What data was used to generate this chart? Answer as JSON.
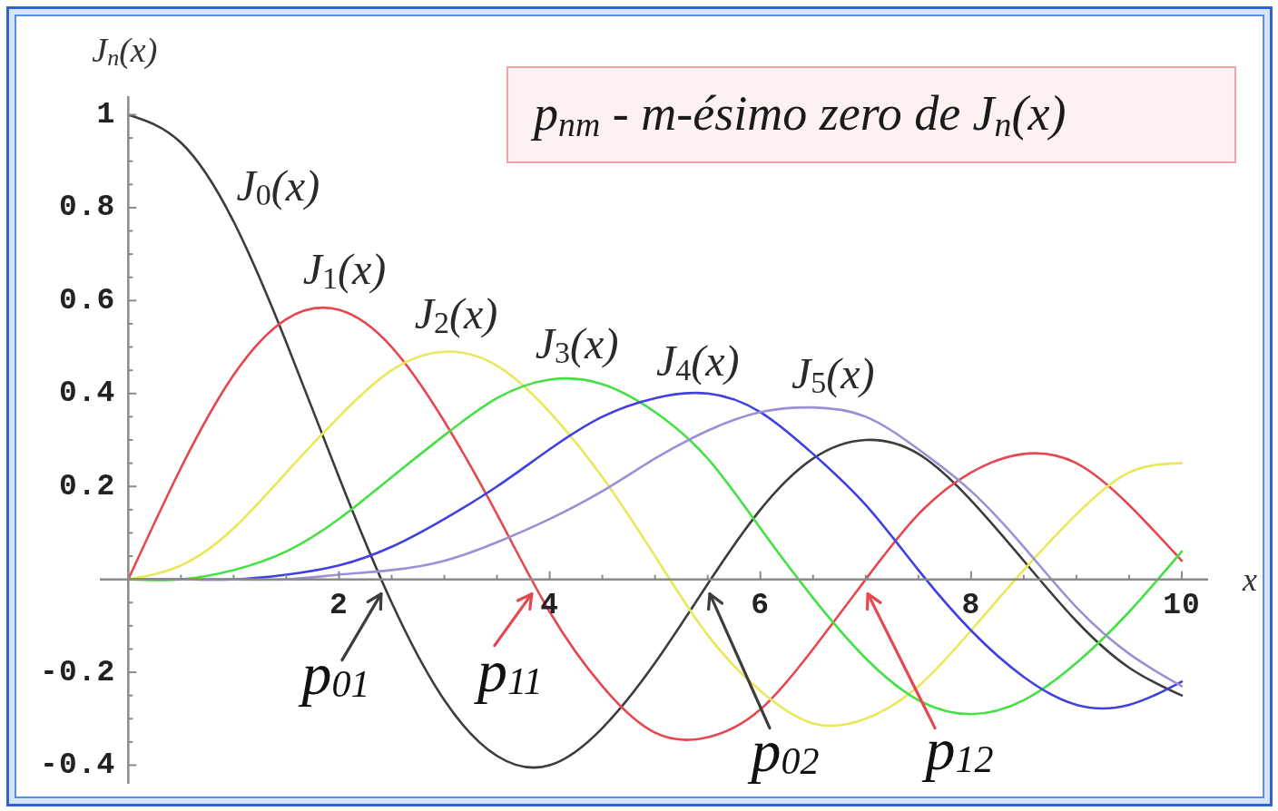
{
  "chart_data": {
    "type": "line",
    "xlabel": "x",
    "ylabel": "J$_{n}$(x)",
    "x": [
      0,
      0.5,
      1,
      1.5,
      2,
      2.5,
      3,
      3.5,
      4,
      4.5,
      5,
      5.5,
      6,
      6.5,
      7,
      7.5,
      8,
      8.5,
      9,
      9.5,
      10
    ],
    "series": [
      {
        "name": "J$_{0}$(x)",
        "color": "#3c3c3c",
        "values": [
          1,
          0.94,
          0.77,
          0.51,
          0.22,
          -0.05,
          -0.26,
          -0.38,
          -0.4,
          -0.32,
          -0.18,
          -0.01,
          0.15,
          0.26,
          0.3,
          0.27,
          0.17,
          0.04,
          -0.09,
          -0.19,
          -0.25
        ]
      },
      {
        "name": "J$_{1}$(x)",
        "color": "#e6474f",
        "values": [
          0,
          0.24,
          0.44,
          0.56,
          0.58,
          0.5,
          0.34,
          0.14,
          -0.07,
          -0.23,
          -0.33,
          -0.34,
          -0.28,
          -0.15,
          0.0,
          0.14,
          0.23,
          0.27,
          0.25,
          0.16,
          0.04
        ]
      },
      {
        "name": "J$_{2}$(x)",
        "color": "#e8e85a",
        "values": [
          0,
          0.03,
          0.11,
          0.23,
          0.35,
          0.45,
          0.49,
          0.46,
          0.36,
          0.22,
          0.05,
          -0.12,
          -0.24,
          -0.31,
          -0.3,
          -0.23,
          -0.11,
          0.02,
          0.14,
          0.23,
          0.25
        ]
      },
      {
        "name": "J$_{3}$(x)",
        "color": "#44e044",
        "values": [
          0,
          0.0,
          0.02,
          0.06,
          0.13,
          0.22,
          0.31,
          0.39,
          0.43,
          0.42,
          0.36,
          0.26,
          0.11,
          -0.04,
          -0.17,
          -0.26,
          -0.29,
          -0.26,
          -0.18,
          -0.07,
          0.06
        ]
      },
      {
        "name": "J$_{4}$(x)",
        "color": "#4040e0",
        "values": [
          0,
          0.0,
          0.0,
          0.01,
          0.03,
          0.07,
          0.13,
          0.2,
          0.28,
          0.35,
          0.39,
          0.4,
          0.36,
          0.27,
          0.16,
          0.02,
          -0.11,
          -0.21,
          -0.27,
          -0.27,
          -0.22
        ]
      },
      {
        "name": "J$_{5}$(x)",
        "color": "#9a90d6",
        "values": [
          0,
          0.0,
          0.0,
          0.0,
          0.01,
          0.02,
          0.04,
          0.08,
          0.13,
          0.19,
          0.26,
          0.32,
          0.36,
          0.37,
          0.35,
          0.28,
          0.19,
          0.07,
          -0.06,
          -0.16,
          -0.23
        ]
      }
    ],
    "xlim": [
      -0.27,
      10.25
    ],
    "ylim": [
      -0.44,
      1.04
    ],
    "xticks": [
      {
        "value": 0.5,
        "label": null
      },
      {
        "value": 1,
        "label": null
      },
      {
        "value": 1.5,
        "label": null
      },
      2,
      {
        "value": 2.5,
        "label": null
      },
      {
        "value": 3,
        "label": null
      },
      {
        "value": 3.5,
        "label": null
      },
      4,
      {
        "value": 4.5,
        "label": null
      },
      {
        "value": 5,
        "label": null
      },
      {
        "value": 5.5,
        "label": null
      },
      6,
      {
        "value": 6.5,
        "label": null
      },
      {
        "value": 7,
        "label": null
      },
      {
        "value": 7.5,
        "label": null
      },
      8,
      {
        "value": 8.5,
        "label": null
      },
      {
        "value": 9,
        "label": null
      },
      {
        "value": 9.5,
        "label": null
      },
      10
    ],
    "yticks": [
      -0.4,
      {
        "value": -0.35,
        "label": null
      },
      {
        "value": -0.3,
        "label": null
      },
      {
        "value": -0.25,
        "label": null
      },
      -0.2,
      {
        "value": -0.15,
        "label": null
      },
      {
        "value": -0.1,
        "label": null
      },
      {
        "value": -0.05,
        "label": null
      },
      {
        "value": 0.05,
        "label": null
      },
      {
        "value": 0.1,
        "label": null
      },
      {
        "value": 0.15,
        "label": null
      },
      0.2,
      {
        "value": 0.25,
        "label": null
      },
      {
        "value": 0.3,
        "label": null
      },
      {
        "value": 0.35,
        "label": null
      },
      0.4,
      {
        "value": 0.45,
        "label": null
      },
      {
        "value": 0.5,
        "label": null
      },
      {
        "value": 0.55,
        "label": null
      },
      0.6,
      {
        "value": 0.65,
        "label": null
      },
      {
        "value": 0.7,
        "label": null
      },
      {
        "value": 0.75,
        "label": null
      },
      0.8,
      {
        "value": 0.85,
        "label": null
      },
      {
        "value": 0.9,
        "label": null
      },
      {
        "value": 0.95,
        "label": null
      },
      1
    ],
    "annotations": [
      "p$_{nm}$ - m-ésimo zero de J$_{n}$(x)",
      {
        "text": "p$_{01}$",
        "x": 2.4,
        "y": 0
      },
      {
        "text": "p$_{11}$",
        "x": 3.83,
        "y": 0
      },
      {
        "text": "p$_{02}$",
        "x": 5.52,
        "y": 0
      },
      {
        "text": "p$_{12}$",
        "x": 7.02,
        "y": 0
      }
    ],
    "marker": "none",
    "line_style": "solid"
  }
}
